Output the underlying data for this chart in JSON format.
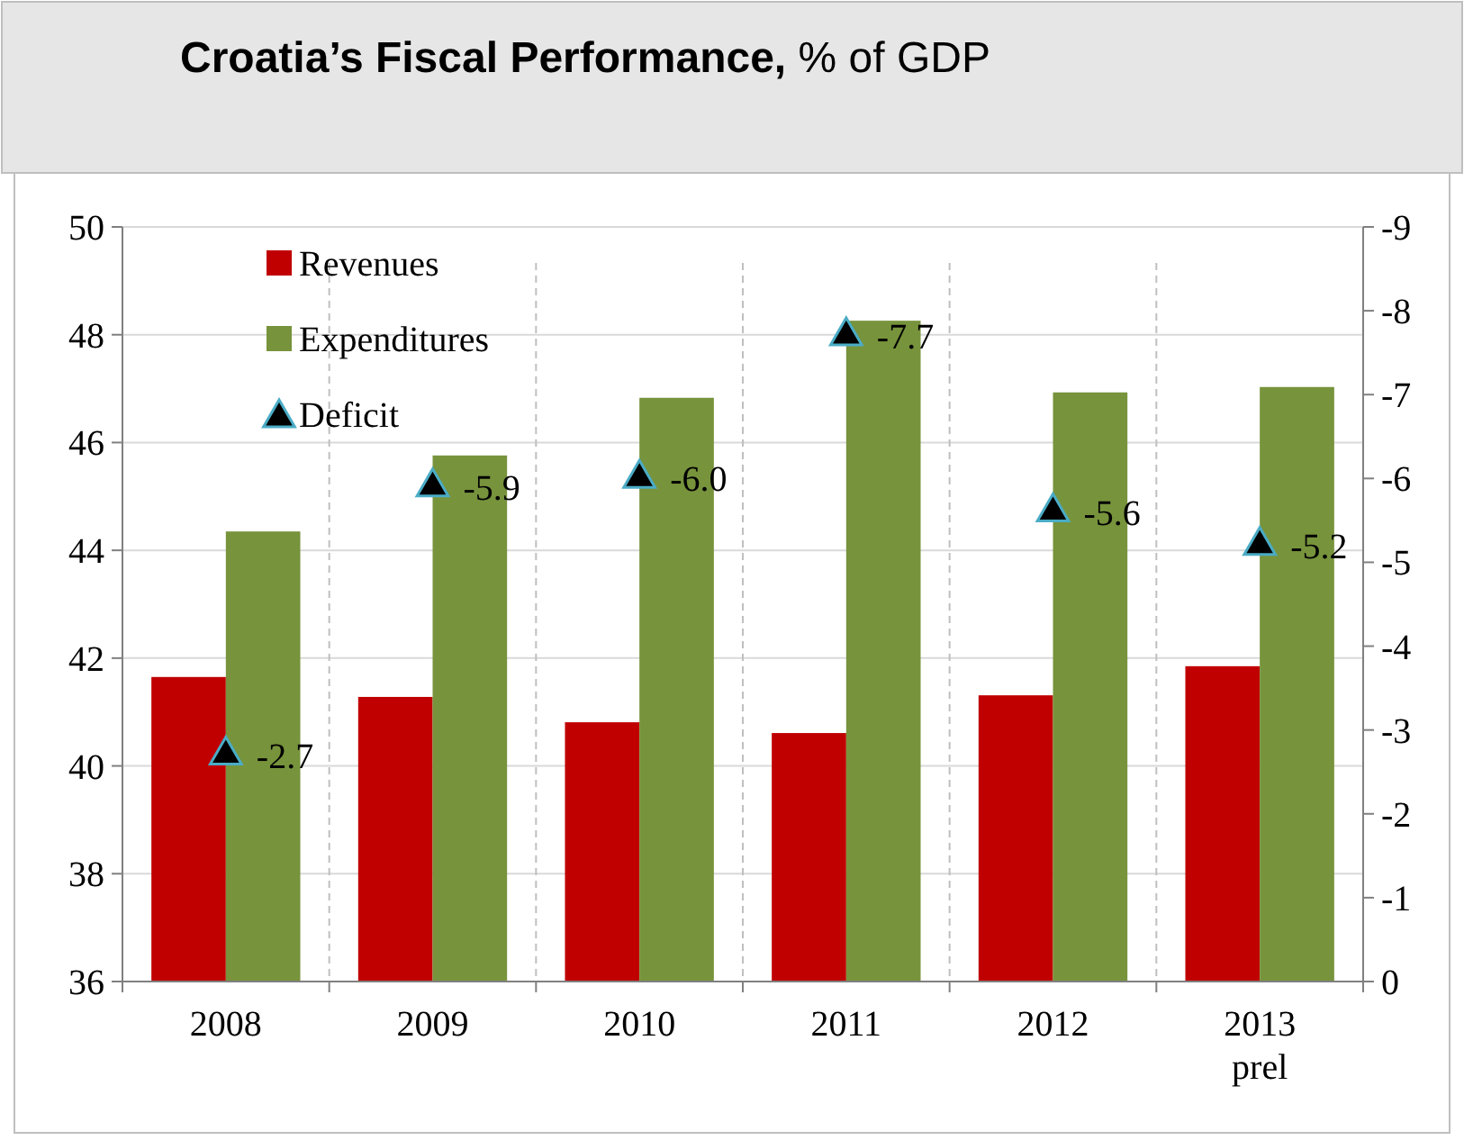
{
  "chart_data": {
    "type": "bar",
    "title": "Croatia’s Fiscal Performance, % of GDP",
    "categories": [
      "2008",
      "2009",
      "2010",
      "2011",
      "2012",
      "2013\nprel"
    ],
    "series": [
      {
        "name": "Revenues",
        "color": "#c00000",
        "values": [
          41.65,
          41.28,
          40.81,
          40.61,
          41.31,
          41.85
        ]
      },
      {
        "name": "Expenditures",
        "color": "#77933c",
        "values": [
          44.35,
          45.76,
          46.83,
          48.26,
          46.93,
          47.03
        ]
      },
      {
        "name": "Deficit",
        "type": "scatter",
        "axis": "y2",
        "color": "#000000",
        "marker": "triangle",
        "values": [
          -2.7,
          -5.9,
          -6.0,
          -7.7,
          -5.6,
          -5.2
        ],
        "value_labels": [
          "-2.7",
          "-5.9",
          "-6.0",
          "-7.7",
          "-5.6",
          "-5.2"
        ]
      }
    ],
    "ylim": [
      36,
      50
    ],
    "yticks": [
      36,
      38,
      40,
      42,
      44,
      46,
      48,
      50
    ],
    "y2lim": [
      0,
      -9
    ],
    "y2ticks": [
      0,
      -1,
      -2,
      -3,
      -4,
      -5,
      -6,
      -7,
      -8,
      -9
    ],
    "grid": "y",
    "legend": "top left"
  }
}
